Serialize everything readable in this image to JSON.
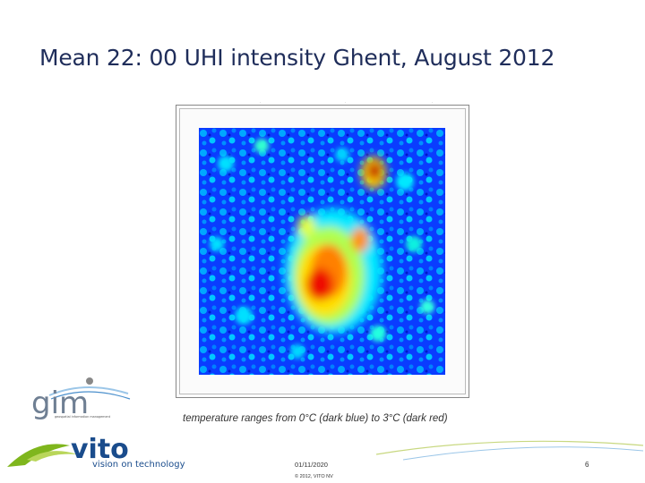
{
  "slide": {
    "title": "Mean 22: 00 UHI intensity Ghent, August 2012",
    "caption": "temperature ranges from 0°C (dark blue) to 3°C (dark red)",
    "date": "01/11/2020",
    "copyright": "© 2012, VITO NV",
    "page_number": "6"
  },
  "logos": {
    "gim_wordmark": "gim",
    "gim_tagline": "geospatial information management",
    "vito_wordmark": "vito",
    "vito_tagline": "vision on technology"
  },
  "map": {
    "temperature_min_c": 0,
    "temperature_max_c": 3,
    "colors": {
      "dark_blue": "#00008f",
      "blue": "#0050ff",
      "cyan": "#00e0ff",
      "yellow": "#ffee00",
      "red": "#ee1100",
      "dark_red": "#9a0000"
    }
  },
  "colors": {
    "title": "#1f2d5a",
    "accent_green": "#7fb61d",
    "accent_blue": "#1a4c8c"
  }
}
